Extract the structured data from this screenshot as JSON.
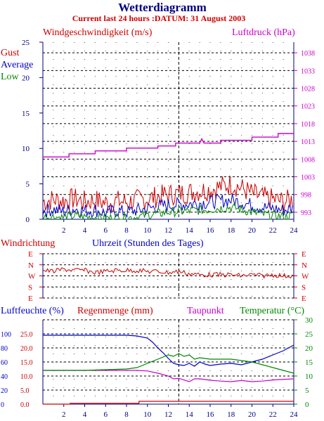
{
  "header": {
    "title": "Wetterdiagramm",
    "subtitle": "Current last 24 hours :DATUM: 31 August 2003"
  },
  "colors": {
    "red": "#cc0000",
    "blue": "#0000cc",
    "green": "#008800",
    "magenta": "#cc00cc",
    "navy": "#000080",
    "grid": "#000000"
  },
  "chart_data": [
    {
      "type": "line",
      "name": "wind",
      "ylabel_left": "Windgeschwindigkeit (m/s)",
      "ylabel_right": "Luftdruck (hPa)",
      "legend": [
        "Gust",
        "Average",
        "Low"
      ],
      "legend_placement": "top-left",
      "x_ticks": [
        2,
        4,
        6,
        8,
        10,
        12,
        14,
        16,
        18,
        20,
        22,
        24
      ],
      "xlim": [
        0,
        24
      ],
      "ylim_left": [
        0,
        25
      ],
      "y_ticks_left": [
        0,
        5,
        10,
        15,
        20,
        25
      ],
      "ylim_right": [
        991,
        1041
      ],
      "y_ticks_right": [
        993,
        998,
        1003,
        1008,
        1013,
        1018,
        1023,
        1028,
        1033,
        1038
      ],
      "marker_x": 13,
      "series": [
        {
          "name": "Gust",
          "axis": "left",
          "x": [
            0,
            1,
            2,
            3,
            4,
            5,
            6,
            7,
            8,
            9,
            10,
            11,
            12,
            13,
            14,
            15,
            16,
            17,
            18,
            19,
            20,
            21,
            22,
            23,
            24
          ],
          "y": [
            2.5,
            2.8,
            2.6,
            2.9,
            2.5,
            2.7,
            2.3,
            2.6,
            2.4,
            2.7,
            2.9,
            3.2,
            3.5,
            3.6,
            3.8,
            4.0,
            4.2,
            4.6,
            5.0,
            4.4,
            3.6,
            3.1,
            2.8,
            2.5,
            2.8
          ]
        },
        {
          "name": "Average",
          "axis": "left",
          "x": [
            0,
            1,
            2,
            3,
            4,
            5,
            6,
            7,
            8,
            9,
            10,
            11,
            12,
            13,
            14,
            15,
            16,
            17,
            18,
            19,
            20,
            21,
            22,
            23,
            24
          ],
          "y": [
            1.2,
            1.4,
            1.1,
            1.5,
            1.2,
            1.3,
            0.9,
            1.2,
            1.0,
            1.3,
            1.5,
            1.8,
            2.0,
            2.1,
            2.2,
            2.3,
            2.4,
            2.6,
            2.7,
            2.4,
            2.0,
            1.7,
            1.5,
            1.3,
            1.5
          ]
        },
        {
          "name": "Low",
          "axis": "left",
          "x": [
            0,
            1,
            2,
            3,
            4,
            5,
            6,
            7,
            8,
            9,
            10,
            11,
            12,
            13,
            14,
            15,
            16,
            17,
            18,
            19,
            20,
            21,
            22,
            23,
            24
          ],
          "y": [
            0.3,
            0.4,
            0.2,
            0.5,
            0.3,
            0.3,
            0.1,
            0.3,
            0.2,
            0.3,
            0.6,
            0.8,
            1.0,
            1.1,
            1.2,
            1.3,
            1.4,
            1.6,
            1.7,
            1.4,
            1.0,
            0.7,
            0.5,
            0.4,
            0.5
          ]
        },
        {
          "name": "Luftdruck",
          "axis": "right",
          "x": [
            0,
            2.5,
            2.5,
            5,
            5,
            8,
            8,
            11,
            11,
            12.7,
            12.7,
            15,
            15.2,
            15.4,
            17,
            17,
            20,
            20,
            22.5,
            22.5,
            24
          ],
          "y": [
            1008.6,
            1008.6,
            1009.5,
            1009.5,
            1010.3,
            1010.3,
            1011.1,
            1011.1,
            1011.7,
            1011.7,
            1012.5,
            1012.5,
            1013.7,
            1012.5,
            1012.5,
            1013.3,
            1013.3,
            1014.2,
            1014.2,
            1015.2,
            1015.2
          ]
        }
      ]
    },
    {
      "type": "line",
      "name": "windrichtung",
      "ylabel_left": "Windrichtung",
      "xlabel": "Uhrzeit (Stunden des Tages)",
      "y_categories": [
        "E",
        "N",
        "W",
        "S",
        "E"
      ],
      "xlim": [
        0,
        24
      ],
      "marker_x": 13,
      "series": [
        {
          "name": "Windrichtung",
          "x": [
            0,
            1,
            2,
            3,
            4,
            5,
            6,
            7,
            8,
            9,
            10,
            11,
            12,
            13,
            14,
            15,
            16,
            17,
            18,
            19,
            20,
            21,
            22,
            23,
            24
          ],
          "y": [
            1.5,
            1.6,
            1.4,
            1.5,
            1.5,
            1.7,
            1.6,
            1.5,
            1.5,
            1.5,
            1.6,
            1.6,
            1.7,
            1.6,
            1.8,
            1.9,
            1.9,
            1.9,
            1.9,
            2.0,
            1.9,
            2.0,
            1.9,
            2.0,
            2.0
          ]
        }
      ]
    },
    {
      "type": "line",
      "name": "feuchte",
      "labels": {
        "humidity": "Luftfeuchte (%)",
        "rain": "Regenmenge (mm)",
        "dew": "Taupunkt",
        "temp": "Temperatur (°C)"
      },
      "x_ticks": [
        2,
        4,
        6,
        8,
        10,
        12,
        14,
        16,
        18,
        20,
        22,
        24
      ],
      "xlim": [
        0,
        24
      ],
      "y_ticks_humidity": [
        0,
        20,
        40,
        60,
        80,
        100
      ],
      "y_ticks_rain": [
        "0.0",
        "5.0",
        "10.0",
        "15.0",
        "20.0",
        "25.0"
      ],
      "y_ticks_temp": [
        0,
        5,
        10,
        15,
        20,
        25,
        30
      ],
      "ylim_temp": [
        0,
        30
      ],
      "marker_x": 13,
      "series": [
        {
          "name": "Luftfeuchte",
          "axis": "humidity",
          "x": [
            0,
            4,
            8,
            9,
            10,
            10.5,
            11,
            11.5,
            12,
            12.5,
            13,
            13.5,
            14,
            14.5,
            15,
            15.5,
            16,
            17,
            18,
            19,
            20,
            21,
            22,
            23,
            24
          ],
          "y": [
            98,
            98,
            98,
            97,
            94,
            88,
            80,
            73,
            65,
            58,
            56,
            55,
            58,
            54,
            60,
            57,
            55,
            57,
            58,
            56,
            60,
            64,
            70,
            76,
            84
          ]
        },
        {
          "name": "Regenmenge",
          "axis": "rain",
          "x": [
            0,
            2.6,
            2.6,
            9.2,
            9.2,
            24
          ],
          "y": [
            0,
            0,
            0.3,
            0.3,
            1.0,
            1.0
          ]
        },
        {
          "name": "Taupunkt",
          "axis": "temp",
          "x": [
            0,
            4,
            8,
            9,
            10,
            11,
            12,
            12.5,
            13,
            14,
            14.5,
            15,
            16,
            17,
            18,
            19,
            20,
            21,
            22,
            24
          ],
          "y": [
            12,
            12,
            12,
            12,
            11.8,
            11,
            10,
            9,
            9.2,
            8,
            9,
            9,
            8.5,
            8.2,
            8,
            8.4,
            8,
            8.2,
            8.6,
            9
          ]
        },
        {
          "name": "Temperatur",
          "axis": "temp",
          "x": [
            0,
            4,
            8,
            9,
            10,
            11,
            12,
            12.5,
            13,
            13.5,
            14,
            14.5,
            15,
            16,
            17,
            18,
            19,
            20,
            21,
            22,
            23,
            24
          ],
          "y": [
            12,
            12,
            12.5,
            13,
            14.5,
            16,
            17.5,
            17,
            18,
            17,
            17.5,
            16,
            16.5,
            16,
            16,
            16,
            15.5,
            15,
            14,
            13,
            12,
            11
          ]
        }
      ]
    }
  ]
}
